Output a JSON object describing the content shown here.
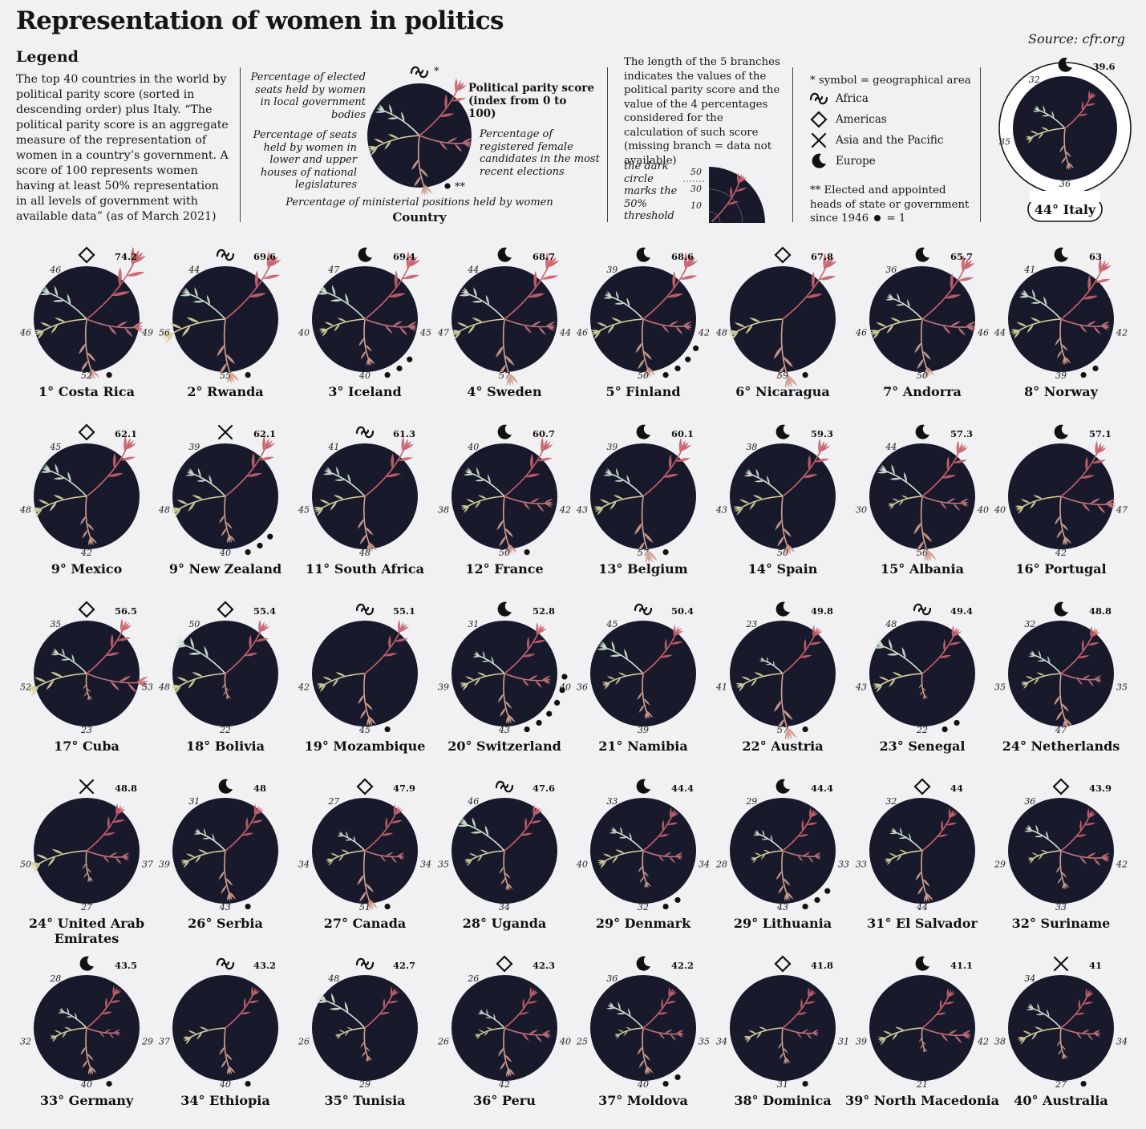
{
  "header": {
    "title": "Representation of women in politics",
    "source": "Source: cfr.org"
  },
  "legend": {
    "heading": "Legend",
    "intro": "The top 40 countries in the world by political parity score (sorted in descending order) plus Italy. “The political parity score is an aggregate measure of the representation of women in a country’s government. A score of 100 represents women having at least 50% representation in all levels of government with available data” (as of March 2021)",
    "branch_local": "Percentage of elected seats held by women in local government bodies",
    "branch_parity": "Political parity score (index from 0 to 100)",
    "branch_legislature": "Percentage of seats held by women in lower and upper houses of national legislatures",
    "branch_candidates": "Percentage of registered female candidates in the most recent elections",
    "branch_ministerial": "Percentage of ministerial positions held by women",
    "country_word": "Country",
    "star": "*",
    "double_star": "**",
    "length_note": "The length of the 5 branches indicates the values of the political parity score and the value of the 4 percentages considered for the calculation of such score (missing branch = data not available)",
    "dark_circle_note": "the dark circle marks the 50% threshold",
    "scale_50": "50",
    "scale_30": "30",
    "scale_10": "10",
    "symbol_note": "* symbol = geographical area",
    "areas": {
      "africa": "Africa",
      "americas": "Americas",
      "asia": "Asia and the Pacific",
      "europe": "Europe"
    },
    "heads_note": "** Elected and appointed heads of state or government since 1946",
    "heads_eq": "= 1"
  },
  "colors": {
    "background": "#f1f1f3",
    "circle": "#181a2c",
    "parity": "#c8616b",
    "candidates": "#c6727b",
    "ministerial": "#d2a08f",
    "legislature": "#d8d29e",
    "local": "#cfe3d3"
  },
  "chart_data": {
    "type": "radial-branches",
    "fields": [
      "rank",
      "country",
      "region",
      "parity_score",
      "local_pct",
      "legislature_pct",
      "ministerial_pct",
      "candidates_pct",
      "heads_of_state"
    ],
    "highlight": {
      "rank_label": "44°",
      "country": "Italy",
      "region": "Europe",
      "parity_score": 39.6,
      "local_pct": 32,
      "legislature_pct": 35,
      "ministerial_pct": 36,
      "candidates_pct": null,
      "heads_of_state": 0
    },
    "rows": [
      [
        "1°",
        "Costa Rica",
        "Americas",
        74.2,
        46,
        46,
        52,
        49,
        1
      ],
      [
        "2°",
        "Rwanda",
        "Africa",
        69.6,
        44,
        56,
        55,
        null,
        1
      ],
      [
        "3°",
        "Iceland",
        "Europe",
        69.4,
        47,
        40,
        40,
        45,
        3
      ],
      [
        "4°",
        "Sweden",
        "Europe",
        68.7,
        44,
        47,
        57,
        44,
        0
      ],
      [
        "5°",
        "Finland",
        "Europe",
        68.6,
        39,
        46,
        50,
        42,
        4
      ],
      [
        "6°",
        "Nicaragua",
        "Americas",
        67.8,
        null,
        48,
        59,
        null,
        1
      ],
      [
        "7°",
        "Andorra",
        "Europe",
        65.7,
        36,
        46,
        50,
        46,
        0
      ],
      [
        "8°",
        "Norway",
        "Europe",
        63,
        41,
        44,
        39,
        42,
        2
      ],
      [
        "9°",
        "Mexico",
        "Americas",
        62.1,
        45,
        48,
        42,
        null,
        0
      ],
      [
        "9°",
        "New Zealand",
        "Asia and the Pacific",
        62.1,
        39,
        48,
        40,
        null,
        3
      ],
      [
        "11°",
        "South Africa",
        "Africa",
        61.3,
        41,
        45,
        48,
        null,
        0
      ],
      [
        "12°",
        "France",
        "Europe",
        60.7,
        40,
        38,
        50,
        42,
        1
      ],
      [
        "13°",
        "Belgium",
        "Europe",
        60.1,
        39,
        43,
        57,
        null,
        1
      ],
      [
        "14°",
        "Spain",
        "Europe",
        59.3,
        38,
        43,
        50,
        null,
        0
      ],
      [
        "15°",
        "Albania",
        "Europe",
        57.3,
        44,
        30,
        56,
        40,
        0
      ],
      [
        "16°",
        "Portugal",
        "Europe",
        57.1,
        null,
        40,
        42,
        47,
        0
      ],
      [
        "17°",
        "Cuba",
        "Americas",
        56.5,
        35,
        52,
        23,
        53,
        0
      ],
      [
        "18°",
        "Bolivia",
        "Americas",
        55.4,
        50,
        48,
        22,
        null,
        0
      ],
      [
        "19°",
        "Mozambique",
        "Africa",
        55.1,
        null,
        42,
        45,
        null,
        1
      ],
      [
        "20°",
        "Switzerland",
        "Europe",
        52.8,
        31,
        39,
        43,
        40,
        6
      ],
      [
        "21°",
        "Namibia",
        "Africa",
        50.4,
        45,
        36,
        39,
        null,
        0
      ],
      [
        "22°",
        "Austria",
        "Europe",
        49.8,
        23,
        41,
        57,
        null,
        1
      ],
      [
        "23°",
        "Senegal",
        "Africa",
        49.4,
        48,
        43,
        22,
        null,
        2
      ],
      [
        "24°",
        "Netherlands",
        "Europe",
        48.8,
        32,
        35,
        47,
        35,
        0
      ],
      [
        "24°",
        "United Arab Emirates",
        "Asia and the Pacific",
        48.8,
        null,
        50,
        27,
        37,
        0
      ],
      [
        "26°",
        "Serbia",
        "Europe",
        48,
        31,
        39,
        43,
        null,
        1
      ],
      [
        "27°",
        "Canada",
        "Americas",
        47.9,
        27,
        34,
        51,
        34,
        1
      ],
      [
        "28°",
        "Uganda",
        "Africa",
        47.6,
        46,
        35,
        34,
        null,
        0
      ],
      [
        "29°",
        "Denmark",
        "Europe",
        44.4,
        33,
        40,
        32,
        34,
        2
      ],
      [
        "29°",
        "Lithuania",
        "Europe",
        44.4,
        29,
        28,
        43,
        33,
        3
      ],
      [
        "31°",
        "El Salvador",
        "Americas",
        44,
        32,
        33,
        44,
        null,
        0
      ],
      [
        "32°",
        "Suriname",
        "Americas",
        43.9,
        36,
        29,
        33,
        42,
        0
      ],
      [
        "33°",
        "Germany",
        "Europe",
        43.5,
        28,
        32,
        40,
        29,
        1
      ],
      [
        "34°",
        "Ethiopia",
        "Africa",
        43.2,
        null,
        37,
        40,
        null,
        1
      ],
      [
        "35°",
        "Tunisia",
        "Africa",
        42.7,
        48,
        26,
        29,
        null,
        0
      ],
      [
        "36°",
        "Peru",
        "Americas",
        42.3,
        26,
        26,
        42,
        40,
        0
      ],
      [
        "37°",
        "Moldova",
        "Europe",
        42.2,
        36,
        25,
        40,
        35,
        2
      ],
      [
        "38°",
        "Dominica",
        "Americas",
        41.8,
        null,
        34,
        31,
        31,
        1
      ],
      [
        "39°",
        "North Macedonia",
        "Europe",
        41.1,
        null,
        39,
        21,
        42,
        0
      ],
      [
        "40°",
        "Australia",
        "Asia and the Pacific",
        41,
        34,
        38,
        27,
        34,
        1
      ]
    ]
  }
}
